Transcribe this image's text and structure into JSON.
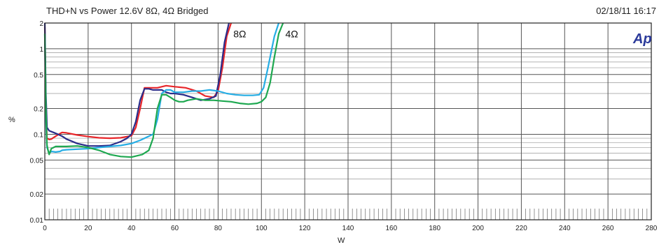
{
  "header": {
    "title": "THD+N vs Power 12.6V 8Ω, 4Ω Bridged",
    "timestamp": "02/18/11 16:17",
    "logo": "Ap"
  },
  "chart_data": {
    "type": "line",
    "xlabel": "W",
    "ylabel": "%",
    "xlim": [
      0,
      280
    ],
    "ylim": [
      0.01,
      2
    ],
    "yscale": "log",
    "grid": true,
    "xticks": [
      0,
      20,
      40,
      60,
      80,
      100,
      120,
      140,
      160,
      180,
      200,
      220,
      240,
      260,
      280
    ],
    "yticks": [
      0.01,
      0.02,
      0.05,
      0.1,
      0.2,
      0.5,
      1,
      2
    ],
    "xtick_labels": [
      "0",
      "20",
      "40",
      "60",
      "80",
      "100",
      "120",
      "140",
      "160",
      "180",
      "200",
      "220",
      "240",
      "260",
      "280"
    ],
    "ytick_labels": [
      "0.01",
      "0.02",
      "0.05",
      "0.1",
      "0.2",
      "0.5",
      "1",
      "2"
    ],
    "annotations": [
      {
        "text": "8Ω",
        "x": 90,
        "y": 1.5
      },
      {
        "text": "4Ω",
        "x": 114,
        "y": 1.5
      }
    ],
    "series": [
      {
        "color": "#e8262a",
        "x": [
          0,
          0.5,
          1,
          2,
          3,
          5,
          7,
          8,
          10,
          15,
          20,
          25,
          30,
          35,
          40,
          42,
          44,
          46,
          48,
          52,
          56,
          60,
          65,
          70,
          74,
          78,
          80,
          82,
          84,
          86
        ],
        "y": [
          1.8,
          0.2,
          0.09,
          0.087,
          0.088,
          0.095,
          0.102,
          0.105,
          0.104,
          0.098,
          0.094,
          0.091,
          0.09,
          0.091,
          0.096,
          0.12,
          0.2,
          0.35,
          0.35,
          0.35,
          0.37,
          0.36,
          0.35,
          0.32,
          0.28,
          0.27,
          0.32,
          0.6,
          1.4,
          2.0
        ]
      },
      {
        "color": "#2b2d8a",
        "x": [
          0,
          0.5,
          1,
          2,
          4,
          6,
          8,
          10,
          15,
          20,
          25,
          30,
          35,
          38,
          40,
          42,
          44,
          46,
          48,
          50,
          54,
          56,
          58,
          60,
          64,
          68,
          72,
          76,
          79,
          81,
          83,
          85
        ],
        "y": [
          2.0,
          0.3,
          0.12,
          0.11,
          0.105,
          0.1,
          0.095,
          0.088,
          0.078,
          0.073,
          0.073,
          0.074,
          0.082,
          0.09,
          0.1,
          0.14,
          0.25,
          0.34,
          0.34,
          0.33,
          0.33,
          0.31,
          0.3,
          0.3,
          0.29,
          0.27,
          0.25,
          0.26,
          0.28,
          0.5,
          1.2,
          2.0
        ]
      },
      {
        "color": "#26ade4",
        "x": [
          0,
          0.5,
          1,
          2,
          3,
          5,
          7,
          8,
          10,
          15,
          20,
          25,
          30,
          35,
          40,
          44,
          48,
          50,
          52,
          54,
          56,
          58,
          60,
          64,
          68,
          72,
          76,
          80,
          84,
          88,
          92,
          96,
          99,
          101,
          103,
          106,
          108
        ],
        "y": [
          1.5,
          0.15,
          0.07,
          0.06,
          0.063,
          0.062,
          0.063,
          0.065,
          0.066,
          0.067,
          0.068,
          0.07,
          0.072,
          0.074,
          0.078,
          0.085,
          0.095,
          0.1,
          0.15,
          0.3,
          0.33,
          0.33,
          0.31,
          0.31,
          0.32,
          0.32,
          0.33,
          0.32,
          0.3,
          0.29,
          0.285,
          0.285,
          0.29,
          0.35,
          0.6,
          1.4,
          2.0
        ]
      },
      {
        "color": "#1ea850",
        "x": [
          0,
          0.5,
          1,
          1.5,
          2,
          3,
          5,
          7,
          10,
          15,
          20,
          25,
          30,
          35,
          40,
          45,
          48,
          50,
          52,
          54,
          56,
          58,
          60,
          62,
          64,
          66,
          70,
          74,
          78,
          82,
          86,
          90,
          94,
          98,
          100,
          102,
          104,
          106,
          108,
          110
        ],
        "y": [
          1.5,
          0.2,
          0.075,
          0.065,
          0.058,
          0.068,
          0.072,
          0.072,
          0.072,
          0.073,
          0.07,
          0.065,
          0.058,
          0.055,
          0.054,
          0.058,
          0.065,
          0.09,
          0.2,
          0.29,
          0.29,
          0.27,
          0.25,
          0.24,
          0.24,
          0.25,
          0.26,
          0.25,
          0.25,
          0.245,
          0.24,
          0.23,
          0.225,
          0.23,
          0.24,
          0.27,
          0.4,
          0.8,
          1.5,
          2.0
        ]
      }
    ]
  }
}
